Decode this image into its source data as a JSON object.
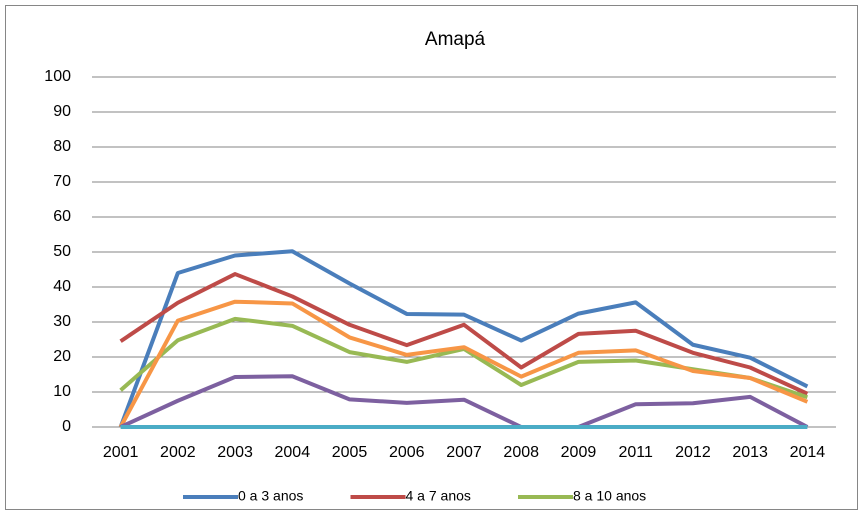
{
  "chart_data": {
    "type": "line",
    "title": "Amapá",
    "categories": [
      "2001",
      "2002",
      "2003",
      "2004",
      "2005",
      "2006",
      "2007",
      "2008",
      "2009",
      "2011",
      "2012",
      "2013",
      "2014"
    ],
    "series": [
      {
        "name": "0 a 3 anos",
        "color": "#4a7ebb",
        "values": [
          0,
          44,
          49,
          50.2,
          41,
          32.3,
          32.1,
          24.7,
          32.4,
          35.6,
          23.5,
          19.8,
          11.6
        ]
      },
      {
        "name": "4 a 7 anos",
        "color": "#be4b48",
        "values": [
          24.5,
          35.5,
          43.7,
          37.3,
          29.2,
          23.4,
          29.2,
          17,
          26.6,
          27.5,
          21.2,
          17,
          9.5
        ]
      },
      {
        "name": "8 a 10 anos",
        "color": "#98b954",
        "values": [
          10.5,
          24.8,
          30.9,
          28.9,
          21.4,
          18.6,
          22.3,
          12,
          18.6,
          19,
          16.5,
          14,
          8.5
        ]
      },
      {
        "color": "#f79646",
        "values": [
          0,
          30.4,
          35.8,
          35.3,
          25.6,
          20.6,
          22.8,
          14.4,
          21.2,
          21.9,
          16,
          14,
          7.2
        ]
      },
      {
        "color": "#7d60a0",
        "values": [
          0,
          7.5,
          14.3,
          14.5,
          7.9,
          6.9,
          7.8,
          0,
          0,
          6.5,
          6.8,
          8.6,
          0
        ]
      },
      {
        "color": "#4bacc6",
        "values": [
          0,
          0,
          0,
          0,
          0,
          0,
          0,
          0,
          0,
          0,
          0,
          0,
          0
        ]
      }
    ],
    "ylim": [
      0,
      100
    ],
    "yticks": [
      0,
      10,
      20,
      30,
      40,
      50,
      60,
      70,
      80,
      90,
      100
    ],
    "grid": true,
    "legend": "bottom"
  }
}
